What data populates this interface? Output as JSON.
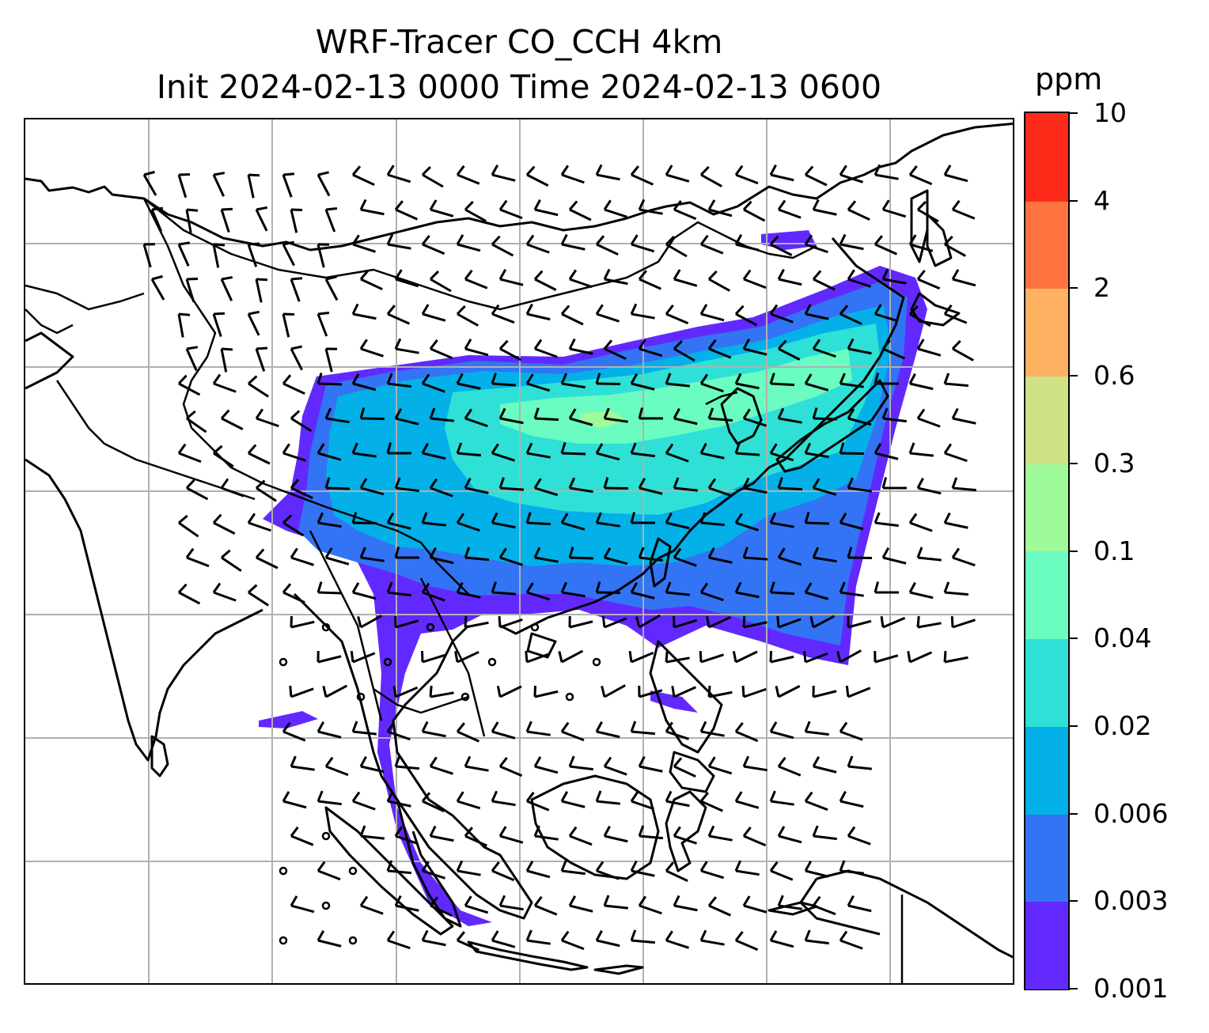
{
  "title": {
    "line1": "WRF-Tracer CO_CCH 4km",
    "line2": "Init 2024-02-13 0000 Time 2024-02-13 0600"
  },
  "colorbar": {
    "unit": "ppm",
    "ticks": [
      "0.001",
      "0.003",
      "0.006",
      "0.02",
      "0.04",
      "0.1",
      "0.3",
      "0.6",
      "2",
      "4",
      "10"
    ],
    "colors": [
      "#6229ff",
      "#3274f4",
      "#03b1e8",
      "#2fe0d7",
      "#6afcc1",
      "#9ffa9a",
      "#cfe187",
      "#feb160",
      "#fe7440",
      "#fe2b1a"
    ]
  },
  "map": {
    "projection": "Mercator",
    "gridlines": true,
    "features": [
      "coastlines",
      "country-borders",
      "wind-barbs",
      "calm-wind-circles",
      "CO-tracer-contours"
    ]
  }
}
